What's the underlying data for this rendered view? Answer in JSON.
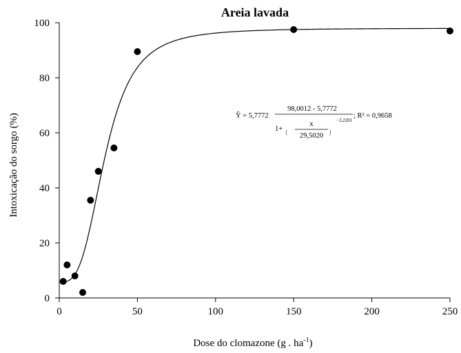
{
  "chart_data": {
    "type": "scatter",
    "title": "Areia lavada",
    "xlabel": "Dose do clomazone (g . ha",
    "xlabel_sup": "-1",
    "xlabel_end": ")",
    "ylabel": "Intoxicação do sorgo (%)",
    "xlim": [
      0,
      250
    ],
    "ylim": [
      0,
      100
    ],
    "xticks": [
      "0",
      "50",
      "100",
      "150",
      "200",
      "250"
    ],
    "yticks": [
      "0",
      "20",
      "40",
      "60",
      "80",
      "100"
    ],
    "grid": false,
    "series": [
      {
        "x": [
          2.5,
          5,
          10,
          15,
          20,
          25,
          35,
          50,
          150,
          250
        ],
        "y": [
          6,
          12,
          8,
          2,
          35.5,
          46,
          54.5,
          89.5,
          97.5,
          97
        ]
      }
    ],
    "fit": {
      "model": "log-logistic",
      "a": 5.7772,
      "b": 98.0012,
      "x50": 29.502,
      "c": -3.2201
    },
    "equation": {
      "lhs": "Ŷ = 5,7772",
      "numerator": "98,0012 - 5,7772",
      "denominator_prefix": "1+",
      "inner_numerator": "x",
      "inner_denominator": "29,5020",
      "exponent": "−3,2201",
      "r2": "; R² = 0,9658"
    }
  }
}
